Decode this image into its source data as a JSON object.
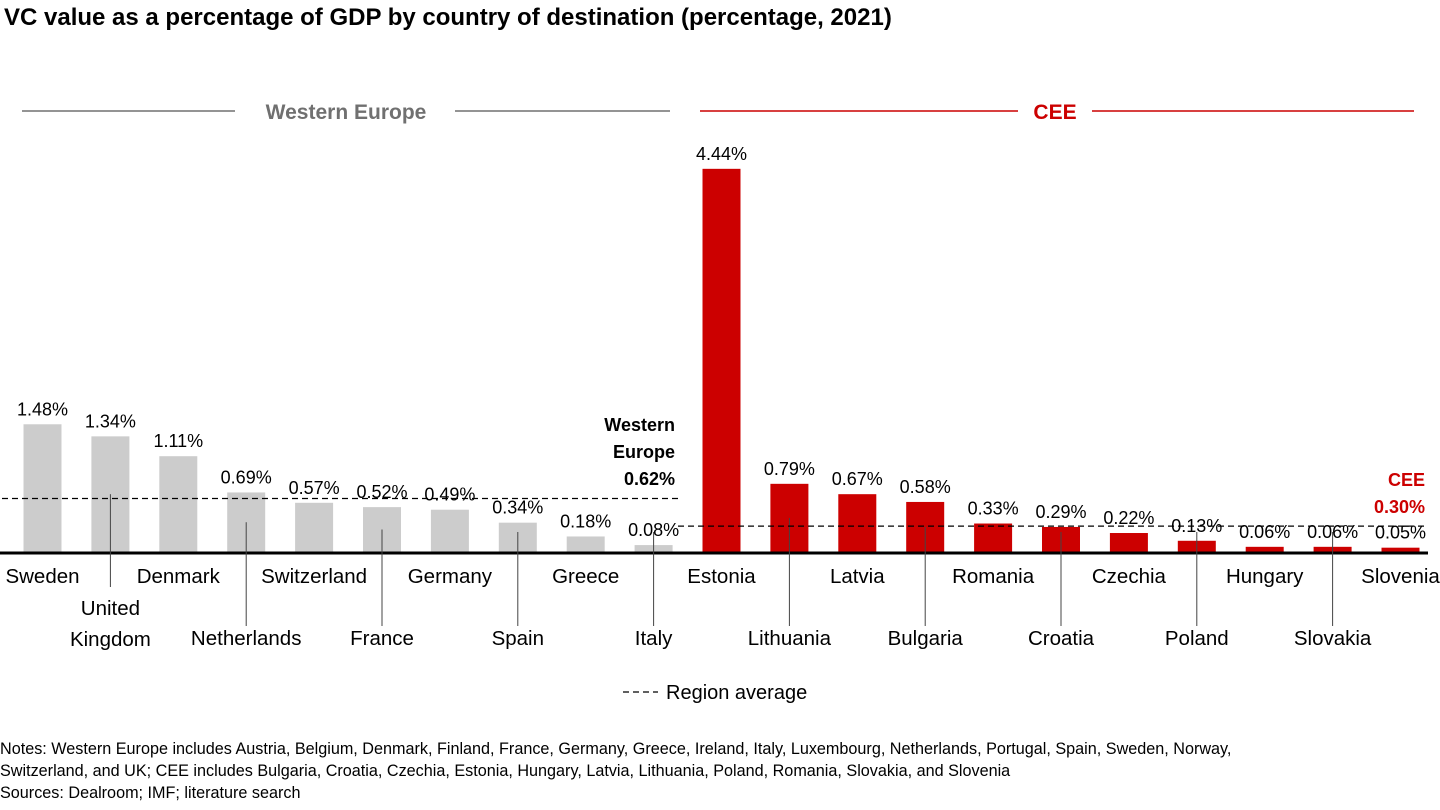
{
  "title": "VC value as a percentage of GDP by country of destination (percentage, 2021)",
  "chart_data": {
    "type": "bar",
    "ylim": [
      0,
      4.6
    ],
    "categories": [
      "Sweden",
      "United Kingdom",
      "Denmark",
      "Netherlands",
      "Switzerland",
      "France",
      "Germany",
      "Spain",
      "Greece",
      "Italy",
      "Estonia",
      "Lithuania",
      "Latvia",
      "Bulgaria",
      "Romania",
      "Croatia",
      "Czechia",
      "Poland",
      "Hungary",
      "Slovakia",
      "Slovenia"
    ],
    "category_lines": [
      [
        "Sweden"
      ],
      [
        "United",
        "Kingdom"
      ],
      [
        "Denmark"
      ],
      [
        "Netherlands"
      ],
      [
        "Switzerland"
      ],
      [
        "France"
      ],
      [
        "Germany"
      ],
      [
        "Spain"
      ],
      [
        "Greece"
      ],
      [
        "Italy"
      ],
      [
        "Estonia"
      ],
      [
        "Lithuania"
      ],
      [
        "Latvia"
      ],
      [
        "Bulgaria"
      ],
      [
        "Romania"
      ],
      [
        "Croatia"
      ],
      [
        "Czechia"
      ],
      [
        "Poland"
      ],
      [
        "Hungary"
      ],
      [
        "Slovakia"
      ],
      [
        "Slovenia"
      ]
    ],
    "values": [
      1.48,
      1.34,
      1.11,
      0.69,
      0.57,
      0.52,
      0.49,
      0.34,
      0.18,
      0.08,
      4.44,
      0.79,
      0.67,
      0.58,
      0.33,
      0.29,
      0.22,
      0.13,
      0.06,
      0.06,
      0.05
    ],
    "value_labels": [
      "1.48%",
      "1.34%",
      "1.11%",
      "0.69%",
      "0.57%",
      "0.52%",
      "0.49%",
      "0.34%",
      "0.18%",
      "0.08%",
      "4.44%",
      "0.79%",
      "0.67%",
      "0.58%",
      "0.33%",
      "0.29%",
      "0.22%",
      "0.13%",
      "0.06%",
      "0.06%",
      "0.05%"
    ],
    "regions": [
      {
        "name": "Western Europe",
        "count": 10,
        "color": "#cccccc",
        "label_color": "#707070",
        "average": 0.62,
        "average_label": [
          "Western",
          "Europe"
        ],
        "average_value_label": "0.62%",
        "average_color": "#000000"
      },
      {
        "name": "CEE",
        "count": 11,
        "color": "#cc0000",
        "label_color": "#cc0000",
        "average": 0.3,
        "average_label": [
          "CEE"
        ],
        "average_value_label": "0.30%",
        "average_color": "#cc0000"
      }
    ],
    "legend": "Region average",
    "legend_position": "bottom"
  },
  "notes": [
    "Notes: Western Europe includes Austria, Belgium, Denmark, Finland, France, Germany, Greece, Ireland, Italy, Luxembourg, Netherlands, Portugal, Spain, Sweden, Norway,",
    "Switzerland, and UK; CEE includes Bulgaria, Croatia, Czechia, Estonia, Hungary, Latvia, Lithuania, Poland, Romania, Slovakia, and Slovenia",
    "Sources: Dealroom; IMF; literature search"
  ]
}
